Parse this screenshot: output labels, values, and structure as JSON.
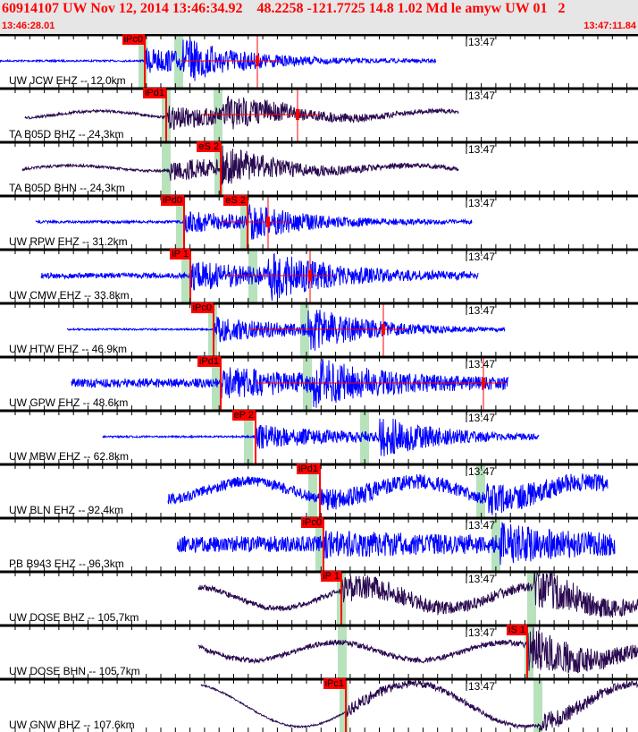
{
  "header": {
    "title": "60914107 UW Nov 12, 2014 13:46:34.92    48.2258 -121.7725 14.8 1.02 Md le amyw UW 01   2",
    "start_time": "13:46:28.01",
    "end_time": "13:47:11.84"
  },
  "minute_label": "13:47",
  "colors": {
    "accent": "#ff0000",
    "short_period": "#0000ff",
    "broadband": "#2a0a50",
    "pick_window": "#b8e2bc"
  },
  "traces": [
    {
      "label": "UW JCW EHZ -- 12.0km",
      "picks": [
        "iPc0"
      ]
    },
    {
      "label": "TA B05D BHZ -- 24.3km",
      "picks": [
        "iPd1"
      ]
    },
    {
      "label": "TA B05D BHN -- 24.3km",
      "picks": [
        "eS 2"
      ]
    },
    {
      "label": "UW RPW EHZ -- 31.2km",
      "picks": [
        "iPd0",
        "eS 2"
      ]
    },
    {
      "label": "UW CMW EHZ -- 33.8km",
      "picks": [
        "iP 1"
      ]
    },
    {
      "label": "UW HTW EHZ -- 46.9km",
      "picks": [
        "iPc0"
      ]
    },
    {
      "label": "UW GPW EHZ -- 48.6km",
      "picks": [
        "iPd1"
      ]
    },
    {
      "label": "UW MBW EHZ -- 62.8km",
      "picks": [
        "eP 2"
      ]
    },
    {
      "label": "UW BLN EHZ -- 92.4km",
      "picks": [
        "iPd1"
      ]
    },
    {
      "label": "PB B943 EHZ -- 96.3km",
      "picks": [
        "iPc0"
      ]
    },
    {
      "label": "UW DOSE BHZ -- 105.7km",
      "picks": [
        "iP 1"
      ]
    },
    {
      "label": "UW DOSE BHN -- 105.7km",
      "picks": [
        "iS 1"
      ]
    },
    {
      "label": "UW GNW BHZ -- 107.6km",
      "picks": [
        "iPc1"
      ]
    }
  ]
}
